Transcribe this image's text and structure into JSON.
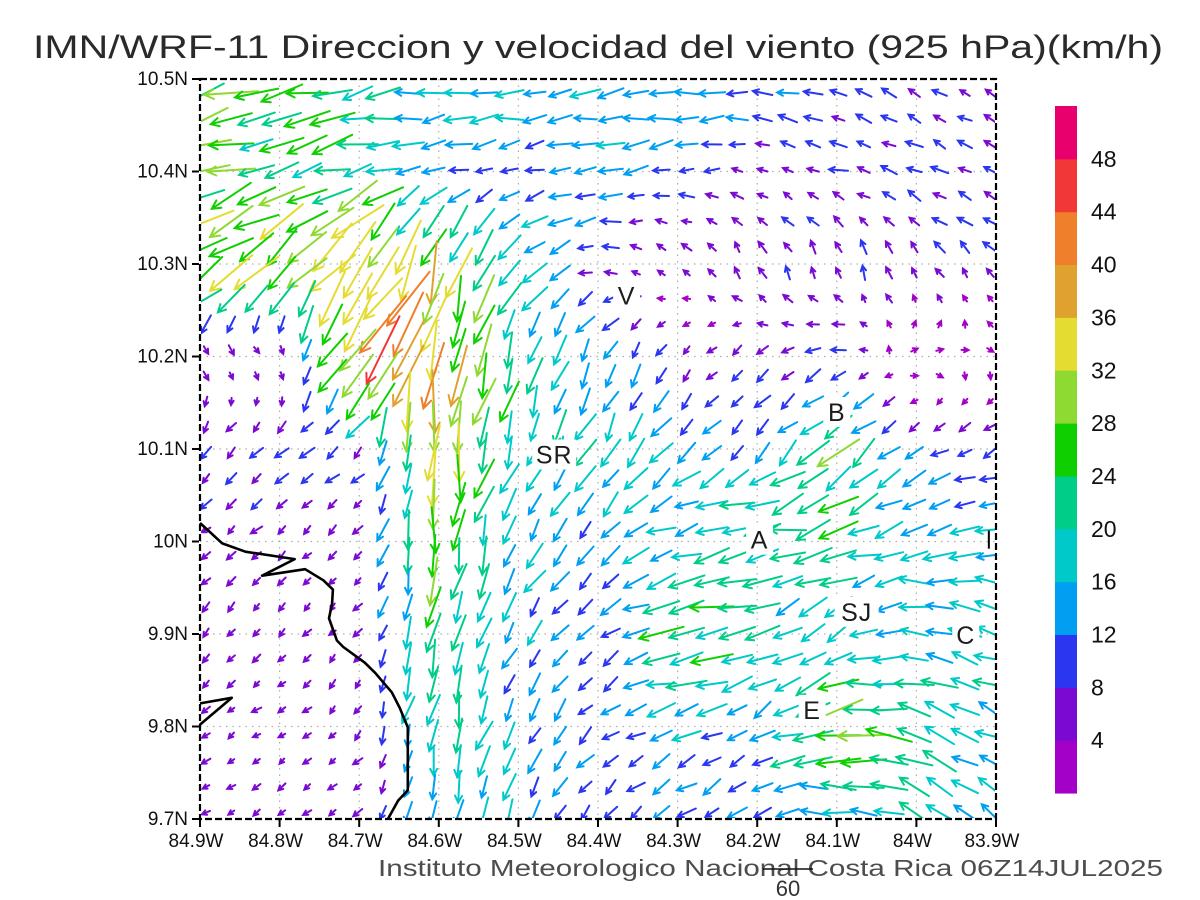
{
  "title": "IMN/WRF-11 Direccion y velocidad del viento (925 hPa)(km/h)",
  "footer": {
    "credit": "Instituto Meteorologico Nacional Costa Rica 06Z14JUL2025",
    "note": "60"
  },
  "chart_data": {
    "type": "vector_field",
    "grid_on": true,
    "x_axis": {
      "labels": [
        "84.9W",
        "84.8W",
        "84.7W",
        "84.6W",
        "84.5W",
        "84.4W",
        "84.3W",
        "84.2W",
        "84.1W",
        "84W",
        "83.9W"
      ],
      "values_deg_west": [
        84.9,
        84.8,
        84.7,
        84.6,
        84.5,
        84.4,
        84.3,
        84.2,
        84.1,
        84.0,
        83.9
      ]
    },
    "y_axis": {
      "labels": [
        "10.5N",
        "10.4N",
        "10.3N",
        "10.2N",
        "10.1N",
        "10N",
        "9.9N",
        "9.8N",
        "9.7N"
      ],
      "values_deg_north": [
        10.5,
        10.4,
        10.3,
        10.2,
        10.1,
        10.0,
        9.9,
        9.8,
        9.7
      ]
    },
    "colorbar": {
      "units": "km/h",
      "levels_kmh": [
        4,
        8,
        12,
        16,
        20,
        24,
        28,
        32,
        36,
        40,
        44,
        48
      ],
      "colors_low_to_high": [
        "#a300c8",
        "#7a0ad2",
        "#2a36f0",
        "#009ff2",
        "#00c9c9",
        "#00cd87",
        "#0fcf00",
        "#8fd933",
        "#e5dc32",
        "#dfa22e",
        "#ef7f2a",
        "#f23737",
        "#e8006c"
      ]
    },
    "wind_grid": {
      "lons_deg_west": [
        84.9,
        84.8,
        84.7,
        84.6,
        84.5,
        84.4,
        84.3,
        84.2,
        84.1,
        84.0,
        83.9
      ],
      "lats_deg_north": [
        10.5,
        10.4,
        10.3,
        10.2,
        10.1,
        10.0,
        9.9,
        9.8,
        9.7
      ],
      "uv_kmh": [
        [
          [
            -26,
            -8
          ],
          [
            -26,
            -6
          ],
          [
            -22,
            -4
          ],
          [
            -18,
            -3
          ],
          [
            -16,
            -2
          ],
          [
            -16,
            -2
          ],
          [
            -15,
            -2
          ],
          [
            -14,
            0
          ],
          [
            -8,
            2
          ],
          [
            -8,
            3
          ],
          [
            -7,
            3
          ]
        ],
        [
          [
            -24,
            -6
          ],
          [
            -22,
            -5
          ],
          [
            -20,
            -5
          ],
          [
            -12,
            -2
          ],
          [
            -10,
            -2
          ],
          [
            -14,
            -3
          ],
          [
            -10,
            -2
          ],
          [
            -6,
            2
          ],
          [
            -9,
            3
          ],
          [
            -8,
            4
          ],
          [
            -8,
            4
          ]
        ],
        [
          [
            -28,
            -22
          ],
          [
            -24,
            -22
          ],
          [
            -26,
            -32
          ],
          [
            -10,
            -30
          ],
          [
            -14,
            -14
          ],
          [
            -8,
            2
          ],
          [
            -3,
            5
          ],
          [
            -4,
            8
          ],
          [
            -2,
            8
          ],
          [
            -4,
            6
          ],
          [
            -6,
            6
          ]
        ],
        [
          [
            4,
            -4
          ],
          [
            5,
            -3
          ],
          [
            -20,
            -34
          ],
          [
            -8,
            -36
          ],
          [
            -6,
            -20
          ],
          [
            -8,
            -14
          ],
          [
            -4,
            -6
          ],
          [
            -6,
            -4
          ],
          [
            -8,
            -2
          ],
          [
            4,
            2
          ],
          [
            2,
            -2
          ]
        ],
        [
          [
            -6,
            -6
          ],
          [
            -7,
            -6
          ],
          [
            -6,
            -6
          ],
          [
            -4,
            -32
          ],
          [
            -6,
            -18
          ],
          [
            -8,
            -16
          ],
          [
            -10,
            -12
          ],
          [
            -8,
            -8
          ],
          [
            -18,
            -18
          ],
          [
            -10,
            -6
          ],
          [
            -8,
            -4
          ]
        ],
        [
          [
            -5,
            -4
          ],
          [
            -5,
            -4
          ],
          [
            -4,
            -4
          ],
          [
            -3,
            -28
          ],
          [
            -8,
            -14
          ],
          [
            -10,
            -8
          ],
          [
            -16,
            -4
          ],
          [
            -24,
            -2
          ],
          [
            -20,
            -6
          ],
          [
            -16,
            -4
          ],
          [
            -16,
            -2
          ]
        ],
        [
          [
            -4,
            -4
          ],
          [
            -4,
            -4
          ],
          [
            -4,
            -4
          ],
          [
            -4,
            -24
          ],
          [
            -8,
            -12
          ],
          [
            -8,
            -8
          ],
          [
            -26,
            -4
          ],
          [
            -18,
            -8
          ],
          [
            -12,
            -10
          ],
          [
            -16,
            4
          ],
          [
            -18,
            4
          ]
        ],
        [
          [
            -4,
            -3
          ],
          [
            -4,
            -3
          ],
          [
            -3,
            -4
          ],
          [
            -3,
            -20
          ],
          [
            -6,
            -12
          ],
          [
            -8,
            -6
          ],
          [
            -16,
            -6
          ],
          [
            -10,
            -8
          ],
          [
            -32,
            -4
          ],
          [
            -22,
            6
          ],
          [
            -16,
            8
          ]
        ],
        [
          [
            -4,
            -3
          ],
          [
            -4,
            -3
          ],
          [
            -5,
            -4
          ],
          [
            -4,
            -16
          ],
          [
            -6,
            -14
          ],
          [
            -6,
            -8
          ],
          [
            -8,
            -6
          ],
          [
            -10,
            -4
          ],
          [
            -18,
            2
          ],
          [
            -16,
            8
          ],
          [
            -12,
            8
          ]
        ]
      ]
    },
    "city_labels": [
      {
        "text": "V",
        "lon_w": 84.364,
        "lat_n": 10.266
      },
      {
        "text": "SR",
        "lon_w": 84.455,
        "lat_n": 10.094
      },
      {
        "text": "B",
        "lon_w": 84.1,
        "lat_n": 10.14
      },
      {
        "text": "A",
        "lon_w": 84.197,
        "lat_n": 10.002
      },
      {
        "text": "SJ",
        "lon_w": 84.075,
        "lat_n": 9.924
      },
      {
        "text": "C",
        "lon_w": 83.938,
        "lat_n": 9.899
      },
      {
        "text": "E",
        "lon_w": 84.131,
        "lat_n": 9.818
      }
    ],
    "station_marker": {
      "lon_w": 83.909,
      "lat_n": 10.002
    },
    "coastline": [
      [
        84.9,
        10.02
      ],
      [
        84.872,
        9.998
      ],
      [
        84.843,
        9.989
      ],
      [
        84.781,
        9.981
      ],
      [
        84.822,
        9.963
      ],
      [
        84.768,
        9.97
      ],
      [
        84.745,
        9.958
      ],
      [
        84.733,
        9.948
      ],
      [
        84.734,
        9.933
      ],
      [
        84.738,
        9.917
      ],
      [
        84.728,
        9.893
      ],
      [
        84.72,
        9.886
      ],
      [
        84.693,
        9.869
      ],
      [
        84.68,
        9.858
      ],
      [
        84.659,
        9.837
      ],
      [
        84.649,
        9.82
      ],
      [
        84.639,
        9.799
      ],
      [
        84.639,
        9.731
      ],
      [
        84.651,
        9.72
      ],
      [
        84.664,
        9.7
      ]
    ],
    "peninsula": [
      [
        84.9,
        9.825
      ],
      [
        84.86,
        9.831
      ],
      [
        84.9,
        9.802
      ]
    ]
  }
}
